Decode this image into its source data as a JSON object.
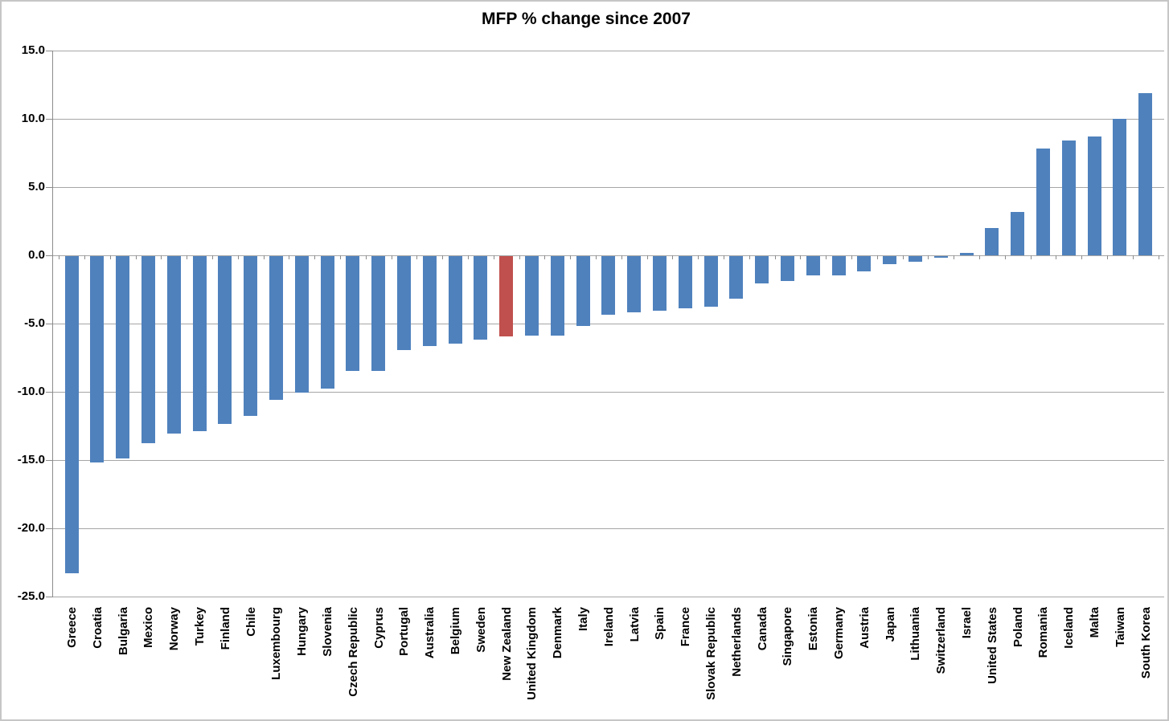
{
  "window": {
    "background": "#ffffff",
    "border_color": "#c6c6c6"
  },
  "chart_data": {
    "type": "bar",
    "title": "MFP % change since 2007",
    "xlabel": "",
    "ylabel": "",
    "ylim": [
      -25,
      15
    ],
    "grid": true,
    "legend_position": "none",
    "bar_color": "#4F81BD",
    "highlight_color": "#C0504D",
    "highlight_category": "New Zealand",
    "gridline_color": "#a6a6a6",
    "axis_color": "#8c8c8c",
    "yticks": [
      15,
      10,
      5,
      0,
      -5,
      -10,
      -15,
      -20,
      -25
    ],
    "ytick_labels": [
      "15.0",
      "10.0",
      "5.0",
      "0.0",
      "-5.0",
      "-10.0",
      "-15.0",
      "-20.0",
      "-25.0"
    ],
    "categories": [
      "Greece",
      "Croatia",
      "Bulgaria",
      "Mexico",
      "Norway",
      "Turkey",
      "Finland",
      "Chile",
      "Luxembourg",
      "Hungary",
      "Slovenia",
      "Czech Republic",
      "Cyprus",
      "Portugal",
      "Australia",
      "Belgium",
      "Sweden",
      "New Zealand",
      "United Kingdom",
      "Denmark",
      "Italy",
      "Ireland",
      "Latvia",
      "Spain",
      "France",
      "Slovak Republic",
      "Netherlands",
      "Canada",
      "Singapore",
      "Estonia",
      "Germany",
      "Austria",
      "Japan",
      "Lithuania",
      "Switzerland",
      "Israel",
      "United States",
      "Poland",
      "Romania",
      "Iceland",
      "Malta",
      "Taiwan",
      "South Korea"
    ],
    "values": [
      -23.2,
      -15.1,
      -14.8,
      -13.7,
      -13.0,
      -12.8,
      -12.3,
      -11.7,
      -10.5,
      -10.0,
      -9.7,
      -8.4,
      -8.4,
      -6.9,
      -6.6,
      -6.4,
      -6.1,
      -5.9,
      -5.8,
      -5.8,
      -5.1,
      -4.3,
      -4.1,
      -4.0,
      -3.8,
      -3.7,
      -3.1,
      -2.0,
      -1.8,
      -1.4,
      -1.4,
      -1.1,
      -0.6,
      -0.4,
      -0.1,
      0.2,
      2.0,
      3.2,
      7.8,
      8.4,
      8.7,
      10.0,
      11.9
    ]
  }
}
